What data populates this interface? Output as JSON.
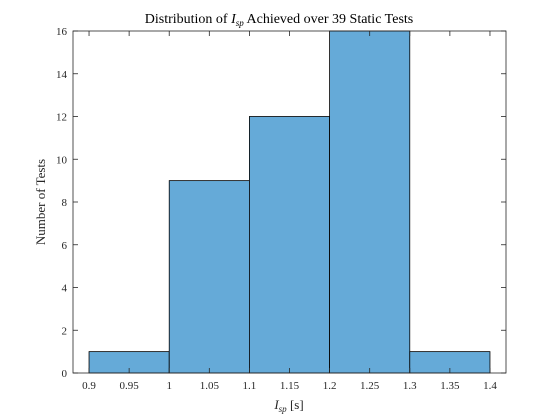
{
  "chart_data": {
    "type": "bar",
    "title": {
      "prefix": "Distribution of ",
      "symbol": "I",
      "subscript": "sp",
      "suffix": " Achieved over 39 Static Tests"
    },
    "xlabel": {
      "symbol": "I",
      "subscript": "sp",
      "unit": " [s]"
    },
    "ylabel": "Number of Tests",
    "bin_edges": [
      0.9,
      1.0,
      1.1,
      1.2,
      1.3,
      1.4
    ],
    "values": [
      1,
      9,
      12,
      16,
      1
    ],
    "xlim": [
      0.88,
      1.42
    ],
    "ylim": [
      0,
      16
    ],
    "xticks": [
      0.9,
      0.95,
      1.0,
      1.05,
      1.1,
      1.15,
      1.2,
      1.25,
      1.3,
      1.35,
      1.4
    ],
    "xtick_labels": [
      "0.9",
      "0.95",
      "1",
      "1.05",
      "1.1",
      "1.15",
      "1.2",
      "1.25",
      "1.3",
      "1.35",
      "1.4"
    ],
    "yticks": [
      0,
      2,
      4,
      6,
      8,
      10,
      12,
      14,
      16
    ],
    "ytick_labels": [
      "0",
      "2",
      "4",
      "6",
      "8",
      "10",
      "12",
      "14",
      "16"
    ],
    "grid": false,
    "bar_color": "#65aad8",
    "edge_color": "#000000"
  }
}
